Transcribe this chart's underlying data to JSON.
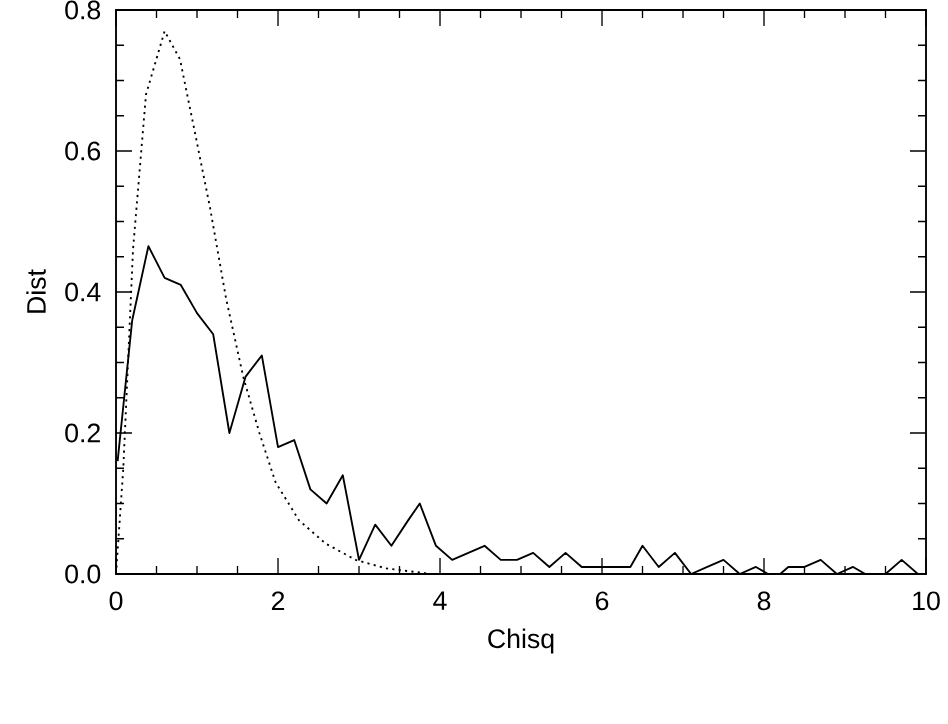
{
  "chart_data": {
    "type": "line",
    "xlabel": "Chisq",
    "ylabel": "Dist",
    "xlim": [
      0,
      10
    ],
    "ylim": [
      0,
      0.8
    ],
    "xticks": [
      0,
      2,
      4,
      6,
      8,
      10
    ],
    "yticks": [
      {
        "value": 0,
        "label": "0.0"
      },
      0.2,
      0.4,
      0.6,
      0.8
    ],
    "series": [
      {
        "color": "#000000",
        "line_style": "solid",
        "x": [
          0.02,
          0.2,
          0.4,
          0.6,
          0.8,
          1.0,
          1.2,
          1.4,
          1.6,
          1.8,
          2.0,
          2.2,
          2.4,
          2.6,
          2.8,
          3.0,
          3.2,
          3.4,
          3.6,
          3.75,
          3.95,
          4.15,
          4.35,
          4.55,
          4.75,
          4.95,
          5.15,
          5.35,
          5.55,
          5.75,
          5.95,
          6.15,
          6.35,
          6.5,
          6.7,
          6.9,
          7.1,
          7.3,
          7.5,
          7.7,
          7.9,
          8.05,
          8.2,
          8.3,
          8.5,
          8.7,
          8.9,
          9.1,
          9.25,
          9.5,
          9.7,
          9.9
        ],
        "values": [
          0.16,
          0.36,
          0.465,
          0.42,
          0.41,
          0.37,
          0.34,
          0.2,
          0.28,
          0.31,
          0.18,
          0.19,
          0.12,
          0.1,
          0.14,
          0.02,
          0.07,
          0.04,
          0.075,
          0.1,
          0.04,
          0.02,
          0.03,
          0.04,
          0.02,
          0.02,
          0.03,
          0.01,
          0.03,
          0.01,
          0.01,
          0.01,
          0.01,
          0.04,
          0.01,
          0.03,
          0.0,
          0.01,
          0.02,
          0.0,
          0.01,
          0.0,
          0.0,
          0.01,
          0.01,
          0.02,
          0.0,
          0.01,
          0.0,
          0.0,
          0.02,
          0.0
        ]
      },
      {
        "color": "#000000",
        "line_style": "dotted",
        "x": [
          0.0,
          0.09,
          0.21,
          0.37,
          0.6,
          0.79,
          0.95,
          1.16,
          1.36,
          1.57,
          1.77,
          1.97,
          2.26,
          2.59,
          2.96,
          3.33,
          3.9,
          5.0,
          7.0,
          10.0
        ],
        "values": [
          0.0,
          0.15,
          0.46,
          0.68,
          0.77,
          0.73,
          0.64,
          0.52,
          0.39,
          0.28,
          0.2,
          0.13,
          0.076,
          0.043,
          0.02,
          0.008,
          0.0,
          0.0,
          0.0,
          0.0
        ]
      }
    ]
  }
}
